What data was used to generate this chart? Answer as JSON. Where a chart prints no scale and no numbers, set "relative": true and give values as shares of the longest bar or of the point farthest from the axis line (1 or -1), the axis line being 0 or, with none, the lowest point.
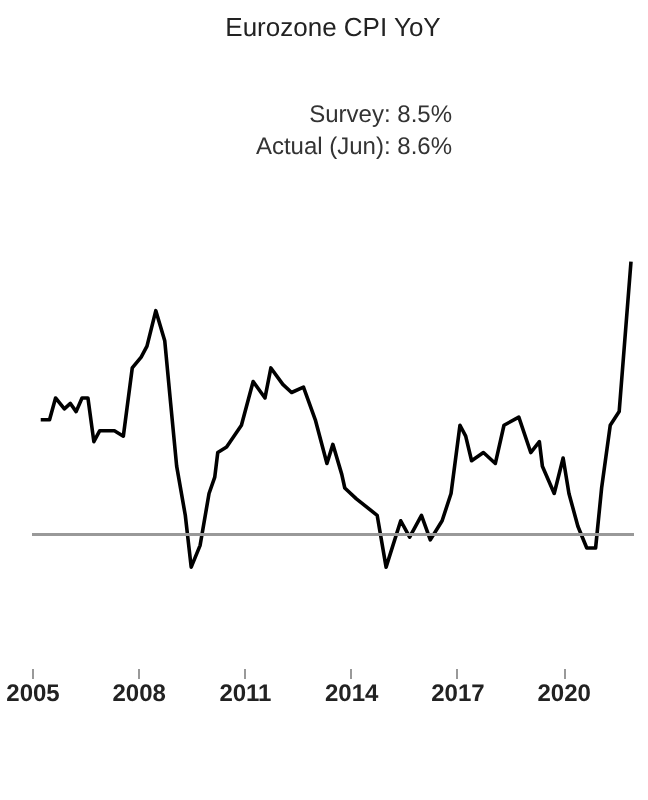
{
  "chart_data": {
    "type": "line",
    "title": "Eurozone CPI YoY",
    "annotations": [
      "Survey:  8.5%",
      "Actual (Jun):  8.6%"
    ],
    "relative": true,
    "xlim": [
      "2005-01-01",
      "2022-01-01"
    ],
    "xticks": [
      "2005",
      "2008",
      "2011",
      "2014",
      "2017",
      "2020"
    ],
    "line_style": "solid",
    "x": [
      "2005-04",
      "2005-07",
      "2005-09",
      "2005-12",
      "2006-02",
      "2006-04",
      "2006-06",
      "2006-08",
      "2006-10",
      "2006-12",
      "2007-05",
      "2007-08",
      "2007-11",
      "2008-02",
      "2008-04",
      "2008-07",
      "2008-10",
      "2008-12",
      "2009-02",
      "2009-05",
      "2009-07",
      "2009-10",
      "2010-01",
      "2010-03",
      "2010-04",
      "2010-07",
      "2010-12",
      "2011-04",
      "2011-08",
      "2011-10",
      "2012-02",
      "2012-05",
      "2012-09",
      "2013-01",
      "2013-05",
      "2013-07",
      "2013-10",
      "2013-11",
      "2014-03",
      "2014-10",
      "2015-01",
      "2015-06",
      "2015-09",
      "2016-01",
      "2016-04",
      "2016-08",
      "2016-11",
      "2017-02",
      "2017-04",
      "2017-06",
      "2017-10",
      "2018-02",
      "2018-05",
      "2018-10",
      "2019-02",
      "2019-05",
      "2019-06",
      "2019-10",
      "2020-01",
      "2020-03",
      "2020-06",
      "2020-09",
      "2020-12",
      "2021-02",
      "2021-05",
      "2021-08",
      "2021-12"
    ],
    "series": [
      {
        "color": "#000000",
        "values": [
          0.42,
          0.42,
          0.5,
          0.46,
          0.48,
          0.45,
          0.5,
          0.5,
          0.34,
          0.38,
          0.38,
          0.36,
          0.61,
          0.65,
          0.69,
          0.82,
          0.71,
          0.48,
          0.25,
          0.07,
          -0.12,
          -0.04,
          0.15,
          0.21,
          0.3,
          0.32,
          0.4,
          0.56,
          0.5,
          0.61,
          0.55,
          0.52,
          0.54,
          0.42,
          0.26,
          0.33,
          0.22,
          0.17,
          0.13,
          0.07,
          -0.12,
          0.05,
          -0.01,
          0.07,
          -0.02,
          0.05,
          0.15,
          0.4,
          0.36,
          0.27,
          0.3,
          0.26,
          0.4,
          0.43,
          0.3,
          0.34,
          0.25,
          0.15,
          0.28,
          0.15,
          0.03,
          -0.05,
          -0.05,
          0.17,
          0.4,
          0.45,
          1
        ]
      }
    ]
  }
}
